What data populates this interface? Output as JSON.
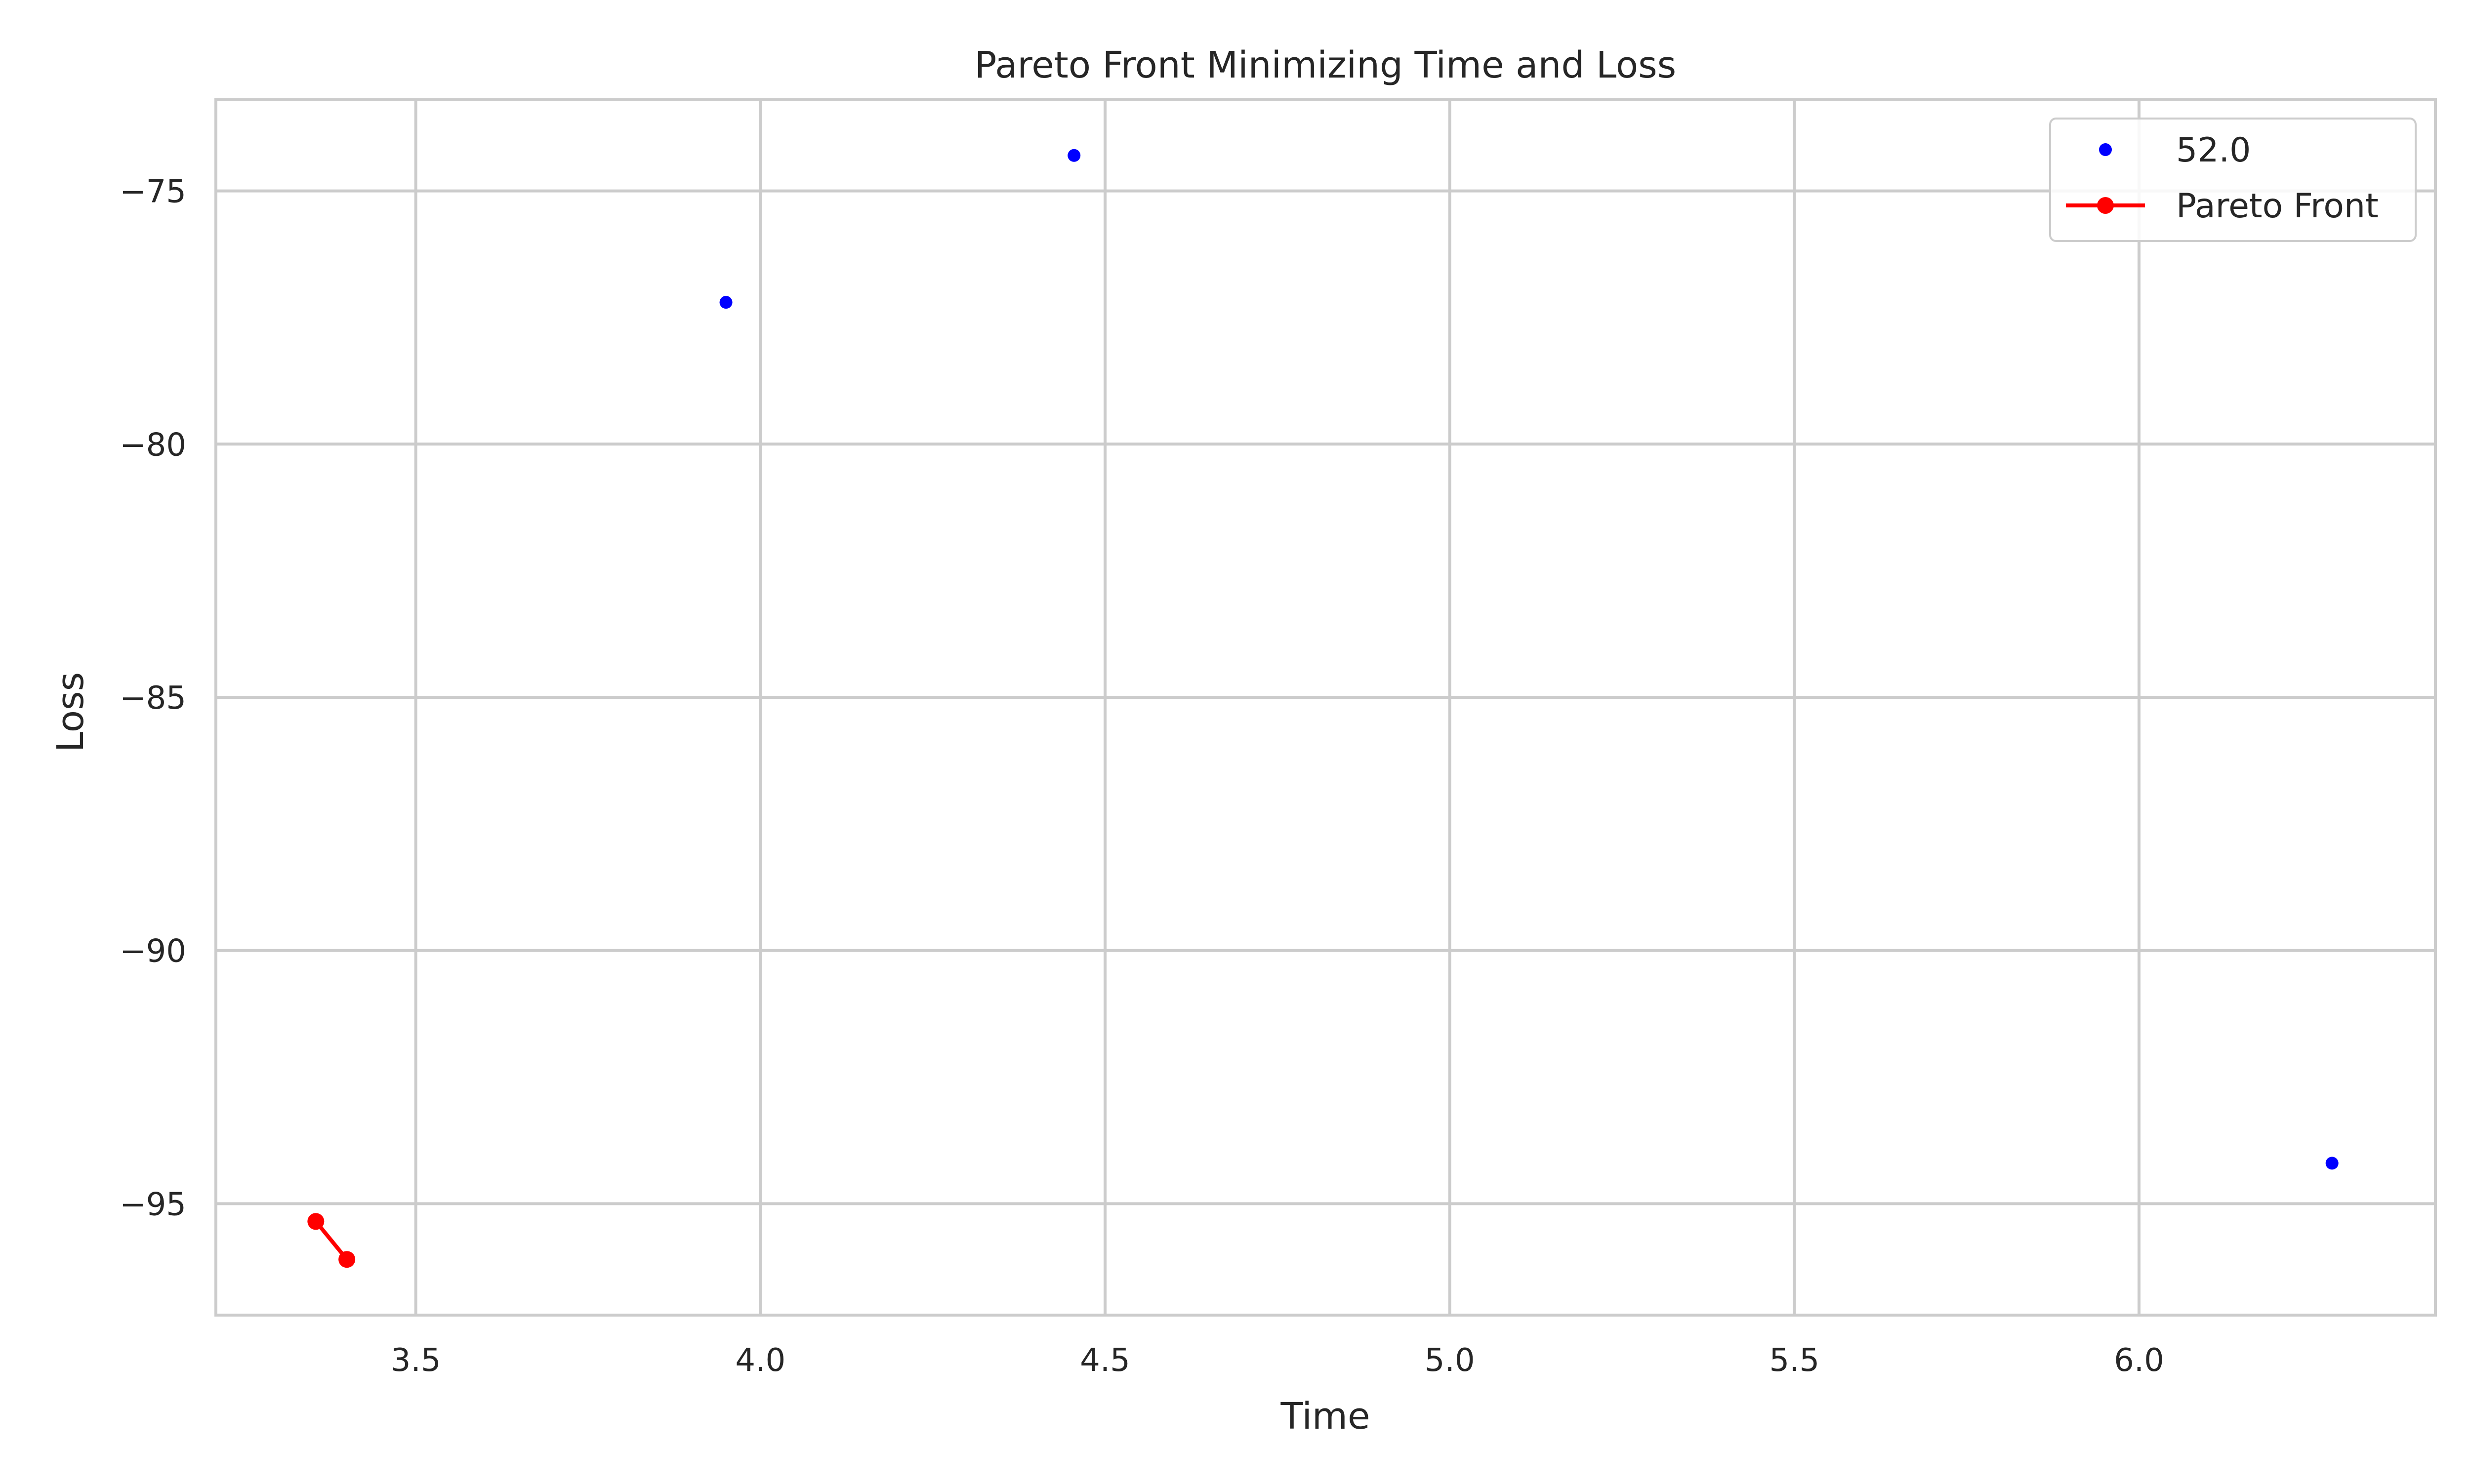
{
  "chart_data": {
    "type": "scatter",
    "title": "Pareto Front Minimizing Time and Loss",
    "xlabel": "Time",
    "ylabel": "Loss",
    "xlim": [
      3.21,
      6.43
    ],
    "ylim": [
      -97.2,
      -73.2
    ],
    "xticks": [
      3.5,
      4.0,
      4.5,
      5.0,
      5.5,
      6.0
    ],
    "yticks": [
      -75,
      -80,
      -85,
      -90,
      -95
    ],
    "xtick_labels": [
      "3.5",
      "4.0",
      "4.5",
      "5.0",
      "5.5",
      "6.0"
    ],
    "ytick_labels": [
      "−75",
      "−80",
      "−85",
      "−90",
      "−95"
    ],
    "grid": true,
    "legend_position": "top-right",
    "series": [
      {
        "name": "52.0",
        "kind": "scatter",
        "color": "#0000ff",
        "points": [
          {
            "x": 3.95,
            "y": -77.2
          },
          {
            "x": 4.455,
            "y": -74.3
          },
          {
            "x": 6.28,
            "y": -94.2
          }
        ]
      },
      {
        "name": "Pareto Front",
        "kind": "line-marker",
        "color": "#ff0000",
        "points": [
          {
            "x": 3.355,
            "y": -95.35
          },
          {
            "x": 3.4,
            "y": -96.1
          }
        ]
      }
    ]
  }
}
